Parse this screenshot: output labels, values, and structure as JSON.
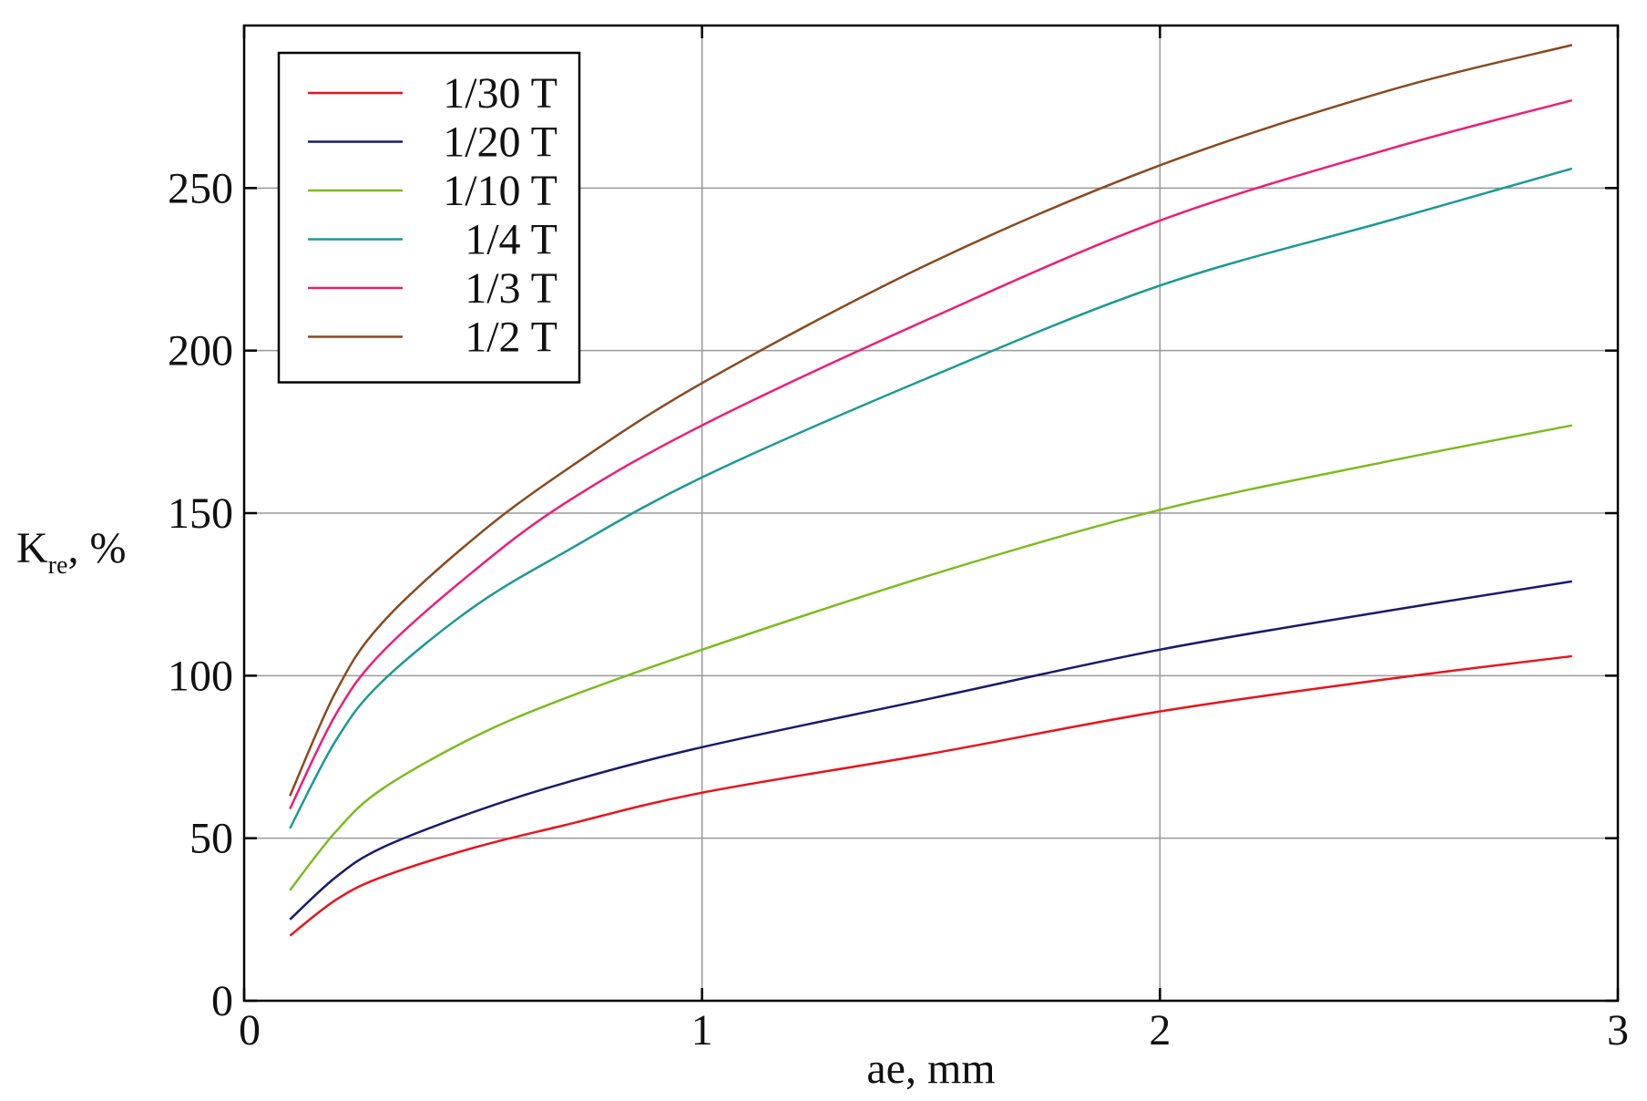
{
  "chart_data": {
    "type": "line",
    "title": "",
    "xlabel": "ae, mm",
    "ylabel": {
      "main": "K",
      "subscript": "re",
      "suffix": ", %"
    },
    "xlim": [
      0,
      3
    ],
    "ylim": [
      0,
      300
    ],
    "x_ticks": [
      0,
      1,
      2,
      3
    ],
    "x_tick_labels": [
      "0",
      "1",
      "2",
      "3"
    ],
    "y_ticks": [
      0,
      50,
      100,
      150,
      200,
      250
    ],
    "y_tick_labels": [
      "0",
      "50",
      "100",
      "150",
      "200",
      "250"
    ],
    "grid": true,
    "legend_position": "top-left",
    "x": [
      0.1,
      0.2,
      0.3,
      0.5,
      0.7,
      1.0,
      1.5,
      2.0,
      2.5,
      2.9
    ],
    "series": [
      {
        "name": "1/30 T",
        "color": "#e8141c",
        "values": [
          20,
          31,
          38,
          47,
          54,
          64,
          76,
          89,
          99,
          106
        ]
      },
      {
        "name": "1/20 T",
        "color": "#1a1a6e",
        "values": [
          25,
          38,
          47,
          58,
          67,
          78,
          93,
          108,
          120,
          129
        ]
      },
      {
        "name": "1/10 T",
        "color": "#7cbc1c",
        "values": [
          34,
          52,
          65,
          81,
          93,
          108,
          131,
          151,
          166,
          177
        ]
      },
      {
        "name": "1/4 T",
        "color": "#1a9a96",
        "values": [
          53,
          80,
          98,
          121,
          138,
          161,
          192,
          220,
          240,
          256
        ]
      },
      {
        "name": "1/3 T",
        "color": "#ee1c78",
        "values": [
          59,
          88,
          107,
          132,
          153,
          177,
          210,
          240,
          262,
          277
        ]
      },
      {
        "name": "1/2 T",
        "color": "#8a4a1e",
        "values": [
          63,
          95,
          116,
          142,
          163,
          190,
          227,
          257,
          280,
          294
        ]
      }
    ]
  }
}
